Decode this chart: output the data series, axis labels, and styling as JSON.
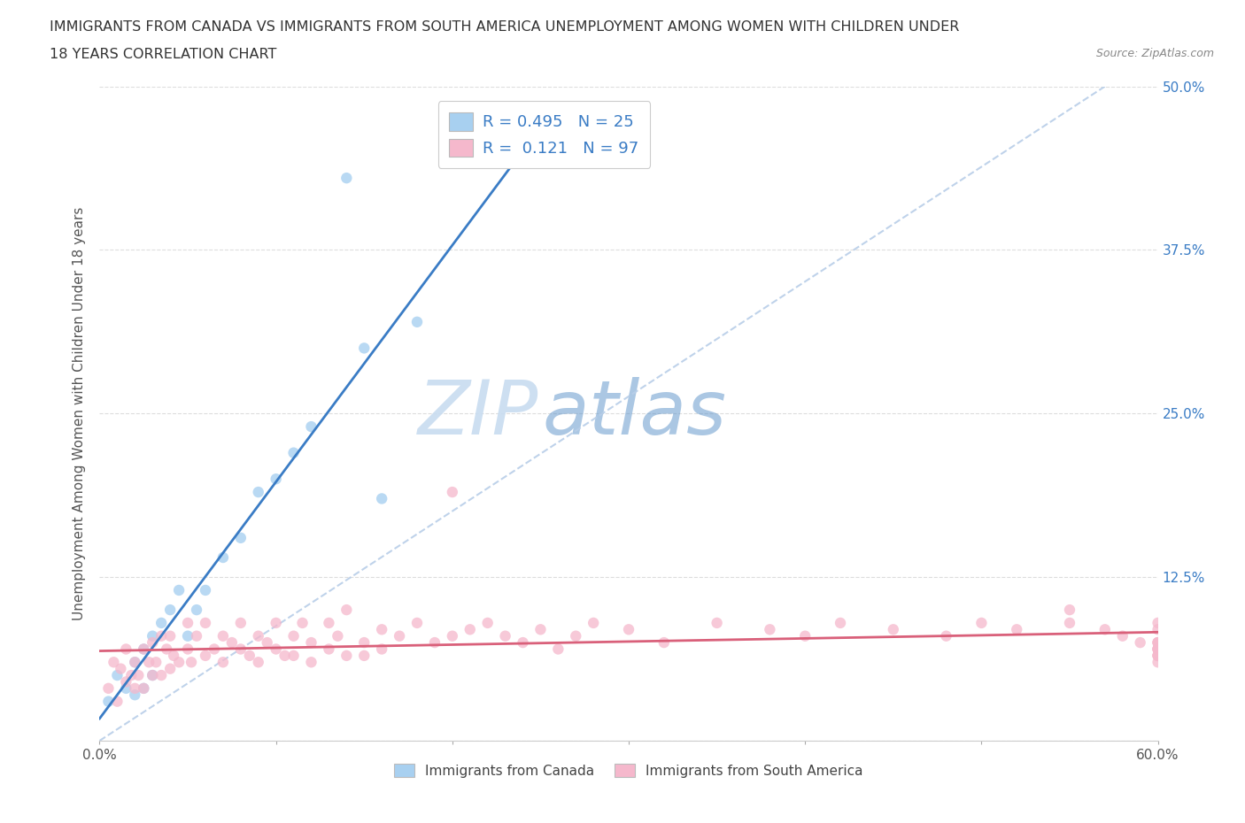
{
  "title_line1": "IMMIGRANTS FROM CANADA VS IMMIGRANTS FROM SOUTH AMERICA UNEMPLOYMENT AMONG WOMEN WITH CHILDREN UNDER",
  "title_line2": "18 YEARS CORRELATION CHART",
  "source": "Source: ZipAtlas.com",
  "ylabel": "Unemployment Among Women with Children Under 18 years",
  "legend_canada_R": "0.495",
  "legend_canada_N": "25",
  "legend_sa_R": "0.121",
  "legend_sa_N": "97",
  "xmin": 0.0,
  "xmax": 0.6,
  "ymin": 0.0,
  "ymax": 0.5,
  "yticks": [
    0.0,
    0.125,
    0.25,
    0.375,
    0.5
  ],
  "ytick_labels_right": [
    "",
    "12.5%",
    "25.0%",
    "37.5%",
    "50.0%"
  ],
  "xticks": [
    0.0,
    0.1,
    0.2,
    0.3,
    0.4,
    0.5,
    0.6
  ],
  "xtick_labels": [
    "0.0%",
    "",
    "",
    "",
    "",
    "",
    "60.0%"
  ],
  "color_canada": "#A8D0F0",
  "color_sa": "#F5B8CC",
  "color_canada_line": "#3A7CC5",
  "color_sa_line": "#D9607A",
  "color_ref_line": "#B8CEE8",
  "watermark_zip": "#C8DCF0",
  "watermark_atlas": "#6699CC",
  "bg_color": "#FFFFFF",
  "grid_color": "#DDDDDD",
  "canada_x": [
    0.005,
    0.01,
    0.015,
    0.02,
    0.02,
    0.025,
    0.025,
    0.03,
    0.03,
    0.035,
    0.04,
    0.045,
    0.05,
    0.055,
    0.06,
    0.07,
    0.08,
    0.09,
    0.1,
    0.11,
    0.12,
    0.14,
    0.15,
    0.16,
    0.18
  ],
  "canada_y": [
    0.03,
    0.05,
    0.04,
    0.06,
    0.035,
    0.07,
    0.04,
    0.08,
    0.05,
    0.09,
    0.1,
    0.115,
    0.08,
    0.1,
    0.115,
    0.14,
    0.155,
    0.19,
    0.2,
    0.22,
    0.24,
    0.43,
    0.3,
    0.185,
    0.32
  ],
  "sa_x": [
    0.005,
    0.008,
    0.01,
    0.012,
    0.015,
    0.015,
    0.018,
    0.02,
    0.02,
    0.022,
    0.025,
    0.025,
    0.028,
    0.03,
    0.03,
    0.032,
    0.035,
    0.035,
    0.038,
    0.04,
    0.04,
    0.042,
    0.045,
    0.05,
    0.05,
    0.052,
    0.055,
    0.06,
    0.06,
    0.065,
    0.07,
    0.07,
    0.075,
    0.08,
    0.08,
    0.085,
    0.09,
    0.09,
    0.095,
    0.1,
    0.1,
    0.105,
    0.11,
    0.11,
    0.115,
    0.12,
    0.12,
    0.13,
    0.13,
    0.135,
    0.14,
    0.14,
    0.15,
    0.15,
    0.16,
    0.16,
    0.17,
    0.18,
    0.19,
    0.2,
    0.2,
    0.21,
    0.22,
    0.23,
    0.24,
    0.25,
    0.26,
    0.27,
    0.28,
    0.3,
    0.32,
    0.35,
    0.38,
    0.4,
    0.42,
    0.45,
    0.48,
    0.5,
    0.52,
    0.55,
    0.55,
    0.57,
    0.58,
    0.59,
    0.6,
    0.6,
    0.6,
    0.6,
    0.6,
    0.6,
    0.6,
    0.6,
    0.6,
    0.6,
    0.6,
    0.6,
    0.6
  ],
  "sa_y": [
    0.04,
    0.06,
    0.03,
    0.055,
    0.045,
    0.07,
    0.05,
    0.04,
    0.06,
    0.05,
    0.07,
    0.04,
    0.06,
    0.05,
    0.075,
    0.06,
    0.08,
    0.05,
    0.07,
    0.055,
    0.08,
    0.065,
    0.06,
    0.07,
    0.09,
    0.06,
    0.08,
    0.065,
    0.09,
    0.07,
    0.08,
    0.06,
    0.075,
    0.09,
    0.07,
    0.065,
    0.08,
    0.06,
    0.075,
    0.07,
    0.09,
    0.065,
    0.08,
    0.065,
    0.09,
    0.075,
    0.06,
    0.09,
    0.07,
    0.08,
    0.065,
    0.1,
    0.075,
    0.065,
    0.085,
    0.07,
    0.08,
    0.09,
    0.075,
    0.08,
    0.19,
    0.085,
    0.09,
    0.08,
    0.075,
    0.085,
    0.07,
    0.08,
    0.09,
    0.085,
    0.075,
    0.09,
    0.085,
    0.08,
    0.09,
    0.085,
    0.08,
    0.09,
    0.085,
    0.1,
    0.09,
    0.085,
    0.08,
    0.075,
    0.09,
    0.085,
    0.075,
    0.07,
    0.065,
    0.06,
    0.07,
    0.075,
    0.065,
    0.07,
    0.075,
    0.065,
    0.07
  ]
}
